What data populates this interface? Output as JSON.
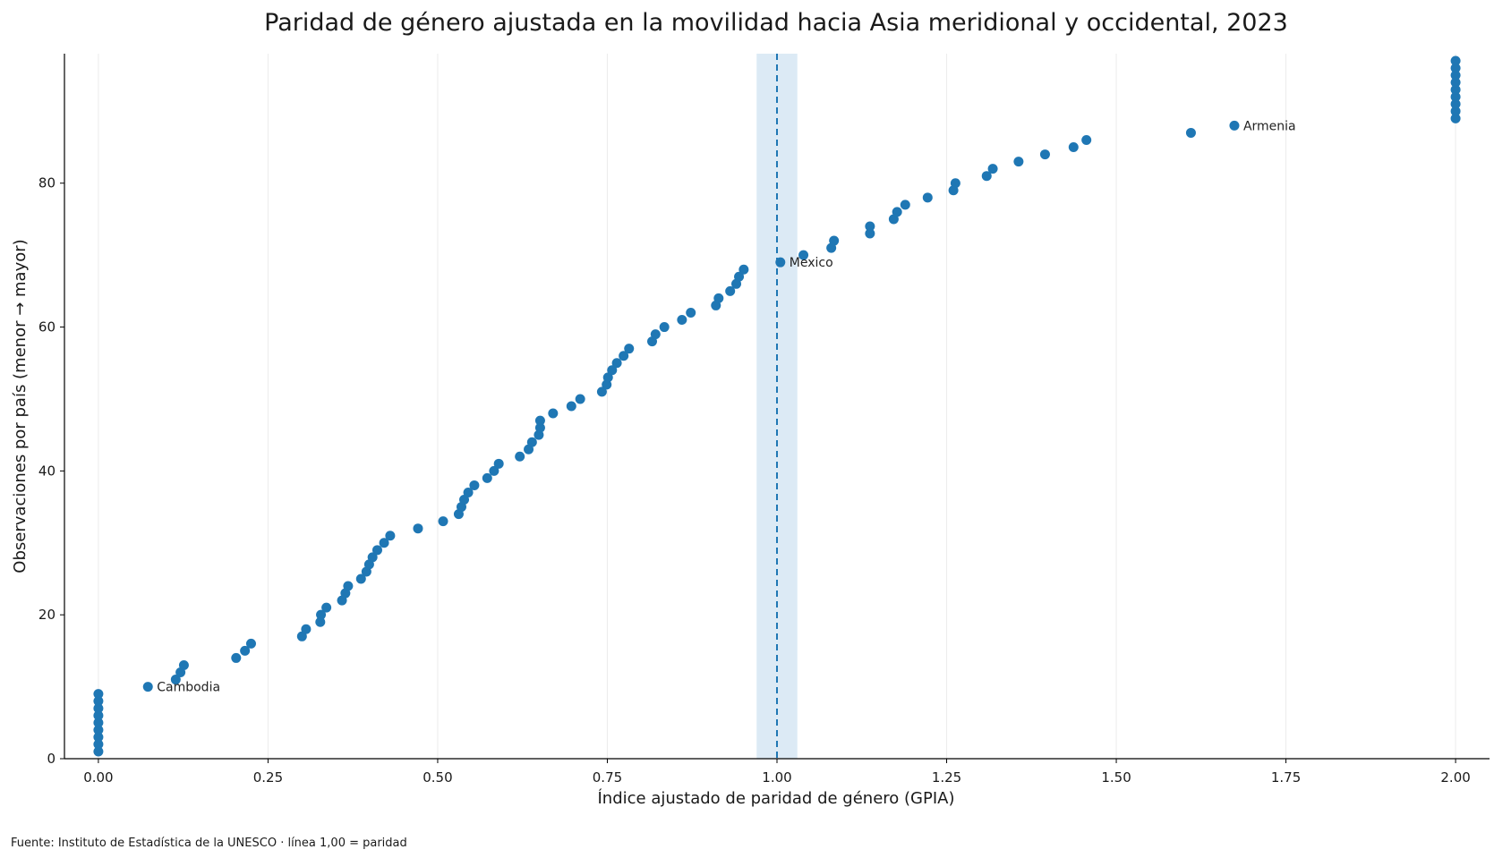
{
  "chart_data": {
    "type": "scatter",
    "title": "Paridad de género ajustada en la movilidad hacia Asia meridional y occidental, 2023",
    "xlabel": "Índice ajustado de paridad de género (GPIA)",
    "ylabel": "Observaciones por país (menor → mayor)",
    "source": "Fuente: Instituto de Estadística de la UNESCO · línea 1,00 = paridad",
    "xlim": [
      -0.05,
      2.05
    ],
    "ylim": [
      0,
      98
    ],
    "xticks": [
      0.0,
      0.25,
      0.5,
      0.75,
      1.0,
      1.25,
      1.5,
      1.75,
      2.0
    ],
    "xtick_labels": [
      "0.00",
      "0.25",
      "0.50",
      "0.75",
      "1.00",
      "1.25",
      "1.50",
      "1.75",
      "2.00"
    ],
    "yticks": [
      0,
      20,
      40,
      60,
      80
    ],
    "ytick_labels": [
      "0",
      "20",
      "40",
      "60",
      "80"
    ],
    "grid": "vertical",
    "reference_line": {
      "x": 1.0,
      "band": [
        0.97,
        1.03
      ]
    },
    "colors": {
      "points": "#1f77b4",
      "band": "#dceaf5",
      "grid": "#ececec",
      "axis": "#000000"
    },
    "series": [
      {
        "x": [
          0.0,
          0.0,
          0.0,
          0.0,
          0.0,
          0.0,
          0.0,
          0.0,
          0.0,
          0.073,
          0.114,
          0.121,
          0.126,
          0.203,
          0.216,
          0.225,
          0.3,
          0.306,
          0.327,
          0.328,
          0.336,
          0.359,
          0.364,
          0.368,
          0.387,
          0.395,
          0.399,
          0.404,
          0.411,
          0.421,
          0.43,
          0.471,
          0.508,
          0.531,
          0.535,
          0.539,
          0.545,
          0.554,
          0.573,
          0.583,
          0.59,
          0.621,
          0.634,
          0.639,
          0.649,
          0.651,
          0.651,
          0.67,
          0.697,
          0.71,
          0.742,
          0.749,
          0.751,
          0.757,
          0.764,
          0.774,
          0.782,
          0.816,
          0.821,
          0.834,
          0.86,
          0.873,
          0.91,
          0.914,
          0.931,
          0.94,
          0.944,
          0.951,
          1.005,
          1.039,
          1.08,
          1.084,
          1.137,
          1.137,
          1.172,
          1.177,
          1.189,
          1.222,
          1.26,
          1.263,
          1.309,
          1.318,
          1.356,
          1.395,
          1.437,
          1.456,
          1.61,
          1.674,
          2.0,
          2.0,
          2.0,
          2.0,
          2.0,
          2.0,
          2.0,
          2.0,
          2.0
        ],
        "y": [
          1,
          2,
          3,
          4,
          5,
          6,
          7,
          8,
          9,
          10,
          11,
          12,
          13,
          14,
          15,
          16,
          17,
          18,
          19,
          20,
          21,
          22,
          23,
          24,
          25,
          26,
          27,
          28,
          29,
          30,
          31,
          32,
          33,
          34,
          35,
          36,
          37,
          38,
          39,
          40,
          41,
          42,
          43,
          44,
          45,
          46,
          47,
          48,
          49,
          50,
          51,
          52,
          53,
          54,
          55,
          56,
          57,
          58,
          59,
          60,
          61,
          62,
          63,
          64,
          65,
          66,
          67,
          68,
          69,
          70,
          71,
          72,
          73,
          74,
          75,
          76,
          77,
          78,
          79,
          80,
          81,
          82,
          83,
          84,
          85,
          86,
          87,
          88,
          89,
          90,
          91,
          92,
          93,
          94,
          95,
          96,
          97
        ]
      }
    ],
    "annotations": [
      {
        "label": "Cambodia",
        "x": 0.073,
        "y": 10
      },
      {
        "label": "Mexico",
        "x": 1.005,
        "y": 69
      },
      {
        "label": "Armenia",
        "x": 1.674,
        "y": 88
      }
    ]
  }
}
